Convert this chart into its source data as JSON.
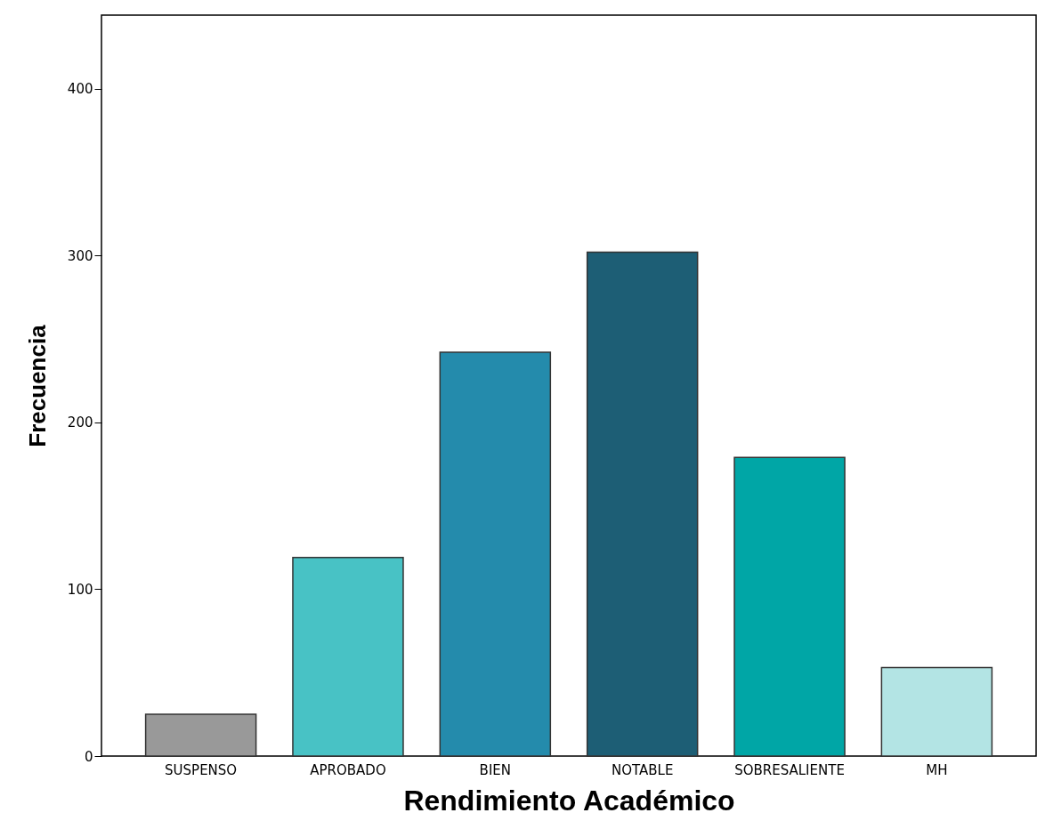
{
  "chart_data": {
    "type": "bar",
    "xlabel": "Rendimiento Académico",
    "ylabel": "Frecuencia",
    "categories": [
      "SUSPENSO",
      "APROBADO",
      "BIEN",
      "NOTABLE",
      "SOBRESALIENTE",
      "MH"
    ],
    "values": [
      25,
      119,
      242,
      302,
      179,
      53
    ],
    "colors": [
      "#999999",
      "#48c2c5",
      "#248bac",
      "#1d5e75",
      "#00a6a6",
      "#b3e4e4"
    ],
    "ylim": [
      0,
      444
    ],
    "yticks": [
      0,
      100,
      200,
      300,
      400
    ],
    "grid": false
  }
}
